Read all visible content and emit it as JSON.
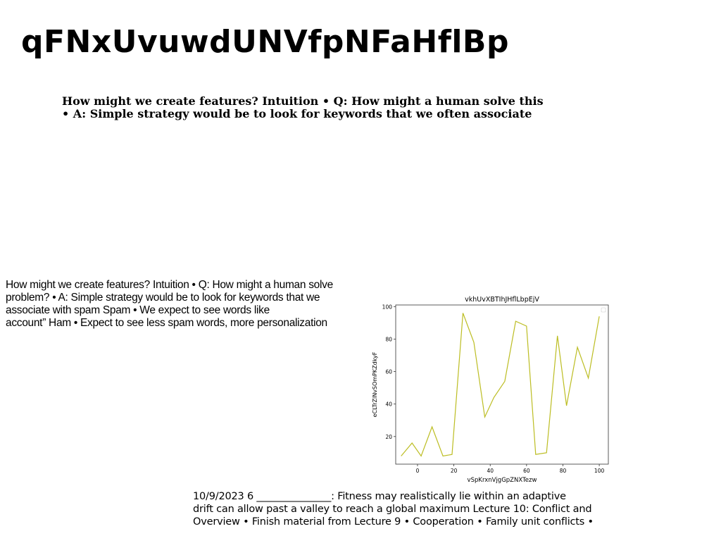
{
  "page": {
    "title": "qFNxUvuwdUNVfpNFaHflBp"
  },
  "bold_paragraph": {
    "lines": [
      "How might we create features? Intuition • Q: How might a human solve this",
      "• A: Simple strategy would be to look for keywords that we often associate"
    ]
  },
  "left_paragraph": {
    "lines": [
      "How might we create features? Intuition • Q: How might a human solve",
      "problem? • A: Simple strategy would be to look for keywords that we",
      "associate with spam Spam • We expect to see words like",
      "account” Ham • Expect to see less spam words, more personalization"
    ]
  },
  "bottom_paragraph": {
    "lines": [
      "10/9/2023 6 _______________: Fitness may realistically lie within an adaptive",
      "drift can allow past a valley to reach a global maximum Lecture 10: Conflict and",
      "Overview • Finish material from Lecture 9 • Cooperation • Family unit conflicts •"
    ]
  },
  "chart_data": {
    "type": "line",
    "title": "vkhUvXBTIhJHflLbpEjV",
    "xlabel": "vSpKrxnVjgGpZNXTezw",
    "ylabel": "eCLTrZlNvSOmPKZdkyF",
    "xlim": [
      -12,
      105
    ],
    "ylim": [
      3,
      101
    ],
    "xticks": [
      0,
      20,
      40,
      60,
      80,
      100
    ],
    "yticks": [
      20,
      40,
      60,
      80,
      100
    ],
    "grid": false,
    "legend": "top-right",
    "line_color": "#bcbd22",
    "series": [
      {
        "x": [
          -9,
          -3,
          2,
          8,
          14,
          19,
          25,
          31,
          37,
          42,
          48,
          54,
          60,
          65,
          71,
          77,
          82,
          88,
          94,
          100
        ],
        "y": [
          8,
          16,
          8,
          26,
          8,
          9,
          96,
          78,
          32,
          44,
          54,
          91,
          88,
          9,
          10,
          82,
          39,
          75,
          56,
          94
        ]
      }
    ]
  }
}
